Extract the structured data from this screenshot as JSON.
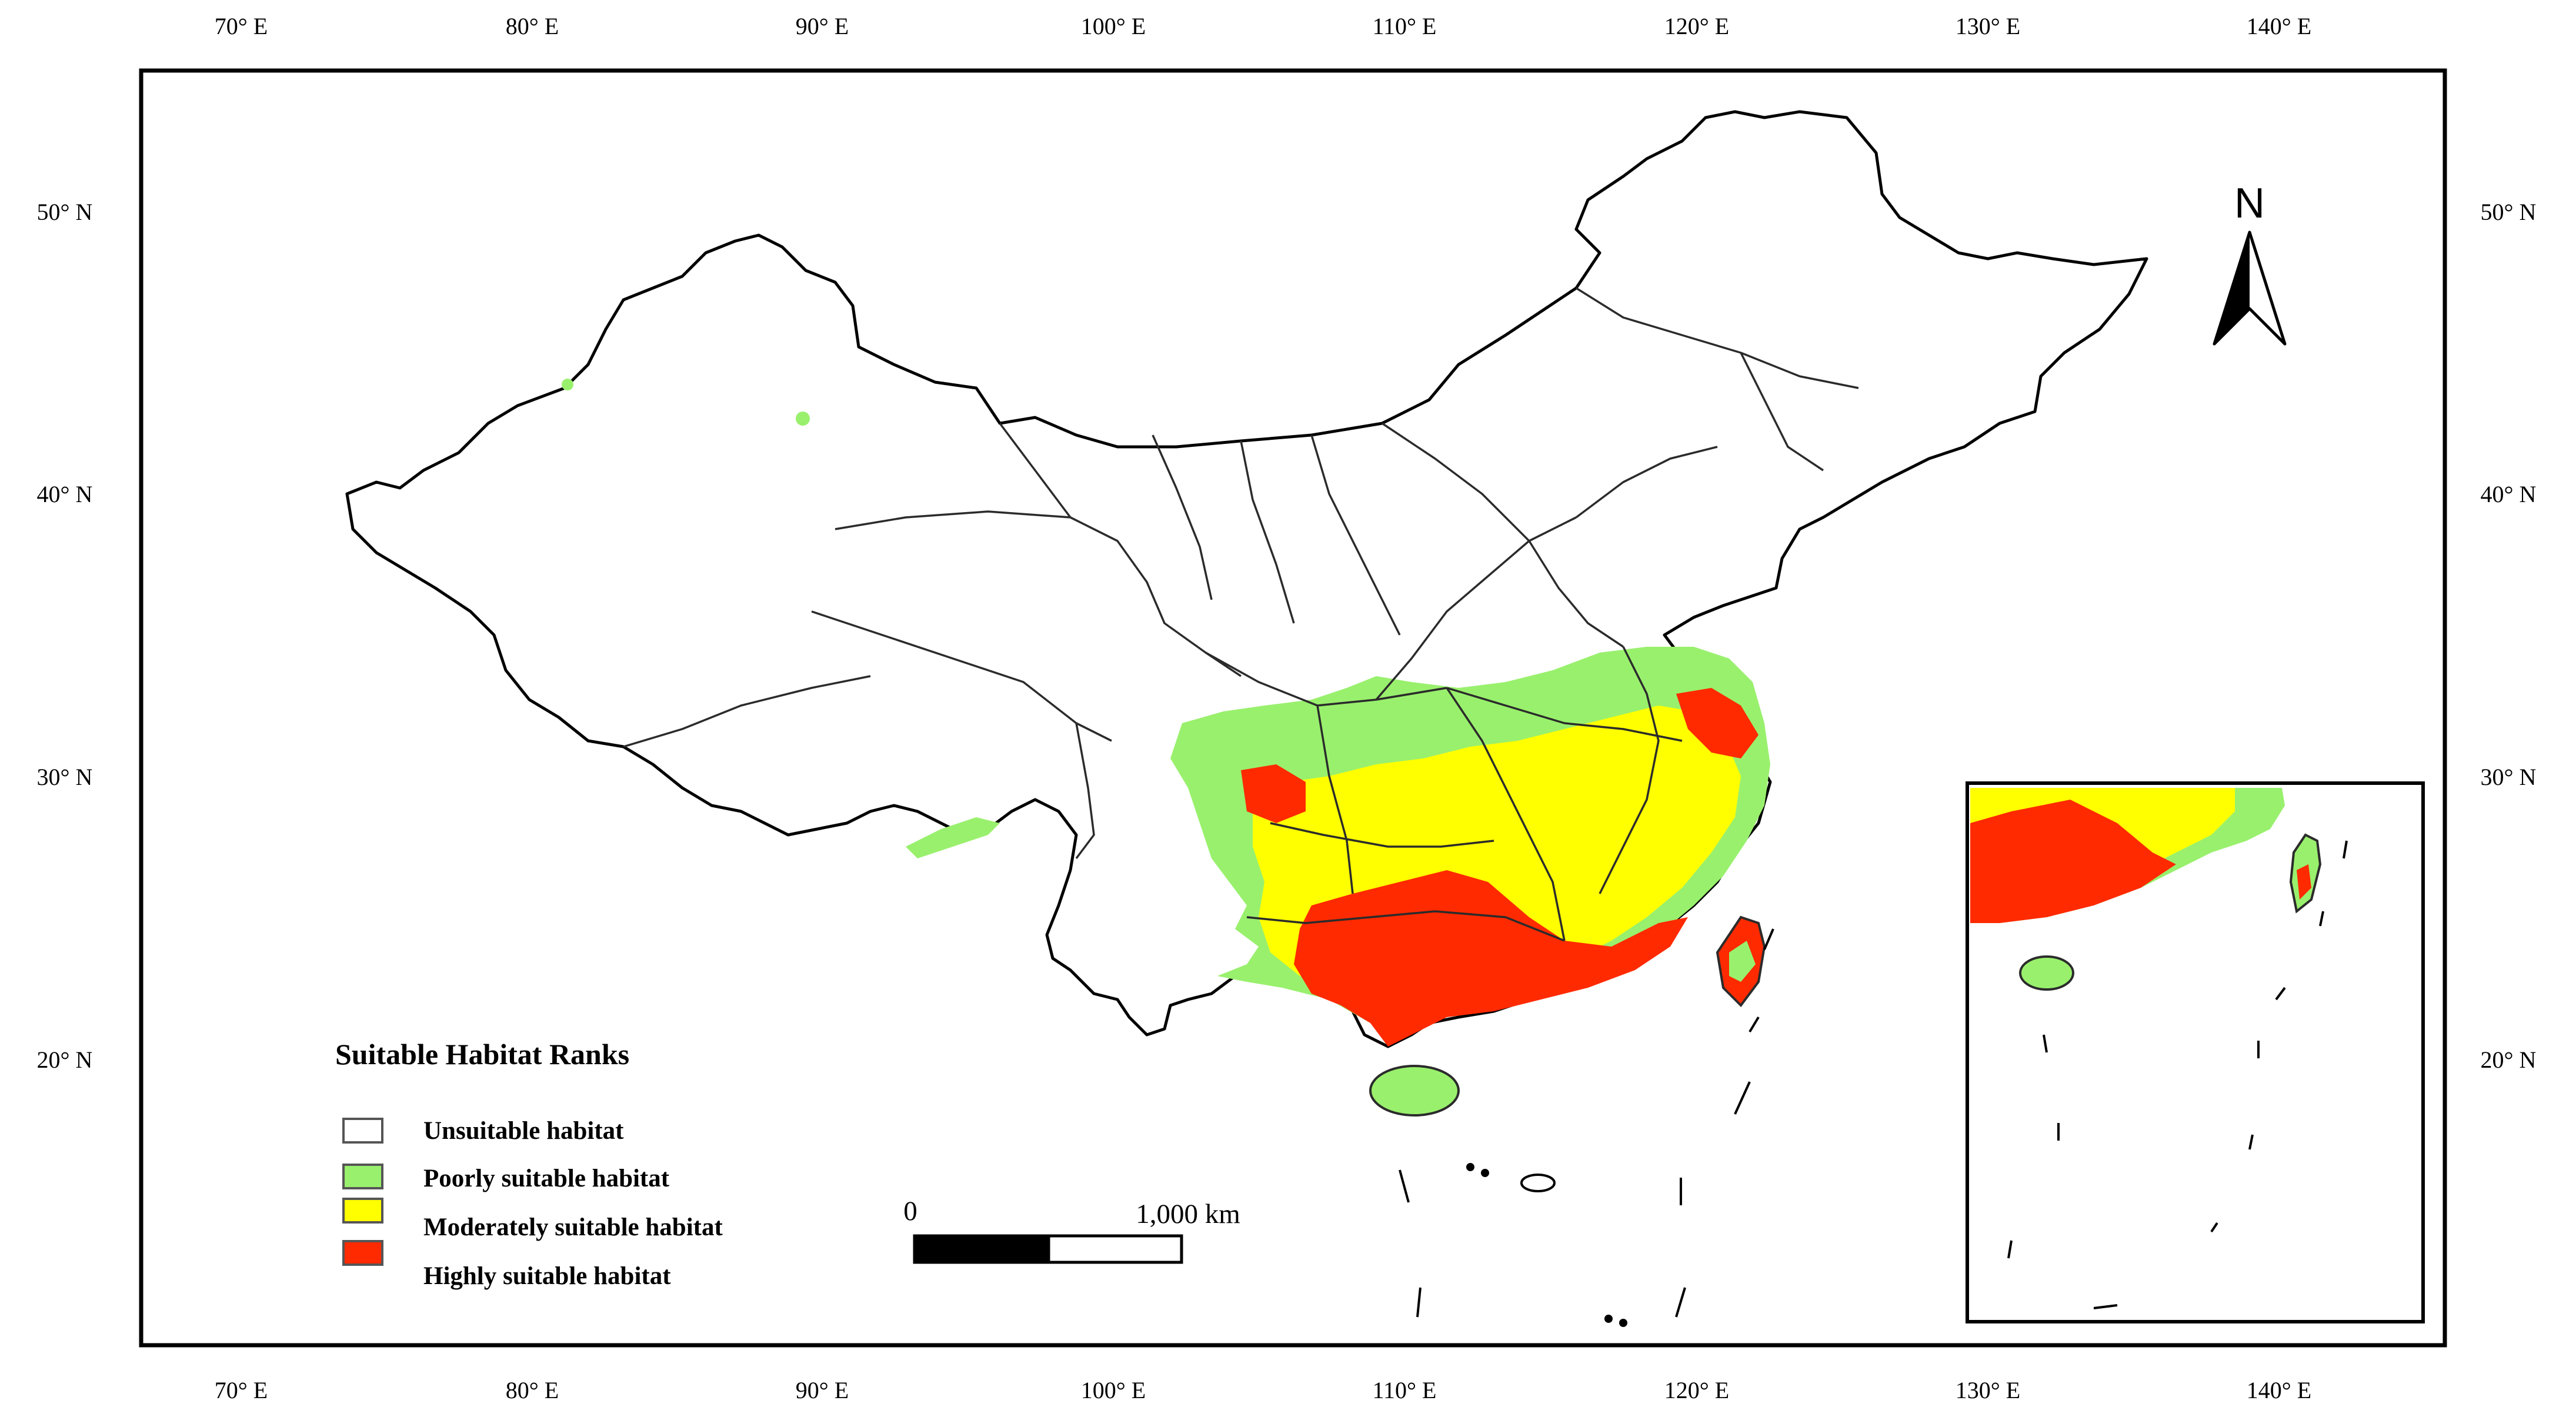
{
  "top_axis_labels": [
    "70° E",
    "80° E",
    "90° E",
    "100° E",
    "110° E",
    "120° E",
    "130° E",
    "140° E"
  ],
  "bottom_axis_labels": [
    "70° E",
    "80° E",
    "90° E",
    "100° E",
    "110° E",
    "120° E",
    "130° E",
    "140° E"
  ],
  "left_axis_labels": [
    "50° N",
    "40° N",
    "30° N",
    "20° N"
  ],
  "right_axis_labels": [
    "50° N",
    "40° N",
    "30° N",
    "20° N"
  ],
  "north_arrow": {
    "label": "N",
    "icon": "north-arrow-icon"
  },
  "legend": {
    "title": "Suitable Habitat Ranks",
    "items": [
      {
        "label": "Unsuitable habitat",
        "color": "#ffffff"
      },
      {
        "label": "Poorly suitable habitat",
        "color": "#99f06d"
      },
      {
        "label": "Moderately suitable habitat",
        "color": "#ffff00"
      },
      {
        "label": "Highly suitable habitat",
        "color": "#ff2a00"
      }
    ]
  },
  "scale_bar": {
    "start_label": "0",
    "end_label": "1,000 km"
  },
  "colors": {
    "unsuitable": "#ffffff",
    "poor": "#99f06d",
    "moderate": "#ffff00",
    "high": "#ff2a00",
    "border": "#2b2b2b",
    "frame": "#000000"
  }
}
